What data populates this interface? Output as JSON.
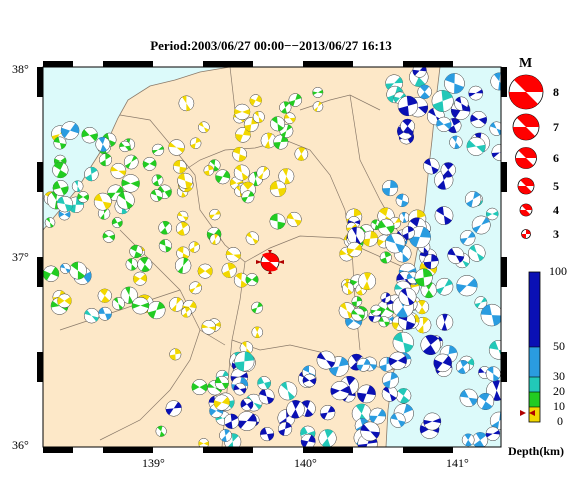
{
  "title": "Period:2003/06/27 00:00−−2013/06/27 16:13",
  "axes": {
    "lat_labels": [
      "38°",
      "37°",
      "36°"
    ],
    "lon_labels": [
      "139°",
      "140°",
      "141°"
    ],
    "lon_range": [
      138.25,
      141.3
    ],
    "lat_range": [
      36.0,
      38.0
    ]
  },
  "legend": {
    "magnitude_title": "M",
    "magnitudes": [
      "8",
      "7",
      "6",
      "5",
      "4",
      "3"
    ],
    "depth_ticks": [
      "100",
      "50",
      "30",
      "20",
      "10",
      "0"
    ],
    "depth_unit": "Depth(km)",
    "depth_colors": {
      "shallow_0_10": "#f2d800",
      "mid_10_20": "#22cc22",
      "mid_20_30": "#22c8b8",
      "mid_30_50": "#2a9ce0",
      "deep_50_100": "#0a10b4"
    }
  },
  "colors": {
    "sea": "#dcfafa",
    "land": "#fde8c8",
    "boundary": "#8a7a6a",
    "main_event": "#ff0000"
  },
  "events": {
    "cluster_west": {
      "depth_color": "green",
      "lon": [
        138.3,
        139.1
      ],
      "lat": [
        36.9,
        37.7
      ]
    },
    "cluster_center": {
      "depth_color": "yellow",
      "lon": [
        139.2,
        140.0
      ],
      "lat": [
        36.4,
        37.7
      ]
    },
    "cluster_east": {
      "depth_color": "yellow/green",
      "lon": [
        140.4,
        140.9
      ],
      "lat": [
        36.7,
        37.2
      ]
    },
    "cluster_offshore": {
      "depth_color": "blue",
      "lon": [
        140.6,
        141.3
      ],
      "lat": [
        36.0,
        37.9
      ]
    },
    "cluster_south": {
      "depth_color": "blue/cyan",
      "lon": [
        139.6,
        140.6
      ],
      "lat": [
        36.0,
        36.5
      ]
    },
    "main_event": {
      "lon": 139.8,
      "lat": 36.95,
      "magnitude": 5
    }
  }
}
